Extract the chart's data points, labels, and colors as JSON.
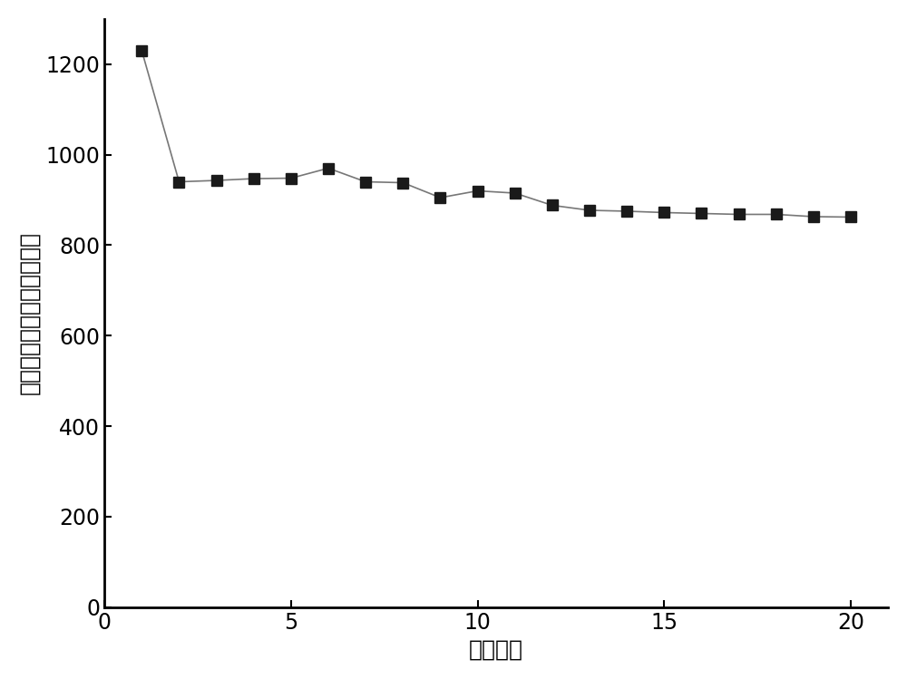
{
  "x": [
    1,
    2,
    3,
    4,
    5,
    6,
    7,
    8,
    9,
    10,
    11,
    12,
    13,
    14,
    15,
    16,
    17,
    18,
    19,
    20
  ],
  "y": [
    1230,
    940,
    943,
    947,
    948,
    970,
    940,
    938,
    905,
    920,
    915,
    888,
    877,
    875,
    872,
    870,
    868,
    868,
    863,
    862
  ],
  "xlabel": "循环次数",
  "ylabel": "放电比容量（毫安时／克）",
  "xlim": [
    0,
    21
  ],
  "ylim": [
    0,
    1300
  ],
  "xticks": [
    0,
    5,
    10,
    15,
    20
  ],
  "yticks": [
    0,
    200,
    400,
    600,
    800,
    1000,
    1200
  ],
  "marker": "s",
  "marker_color": "#1a1a1a",
  "line_color": "#777777",
  "marker_size": 9,
  "line_width": 1.2,
  "background_color": "#ffffff",
  "xlabel_fontsize": 18,
  "ylabel_fontsize": 18,
  "tick_fontsize": 17
}
